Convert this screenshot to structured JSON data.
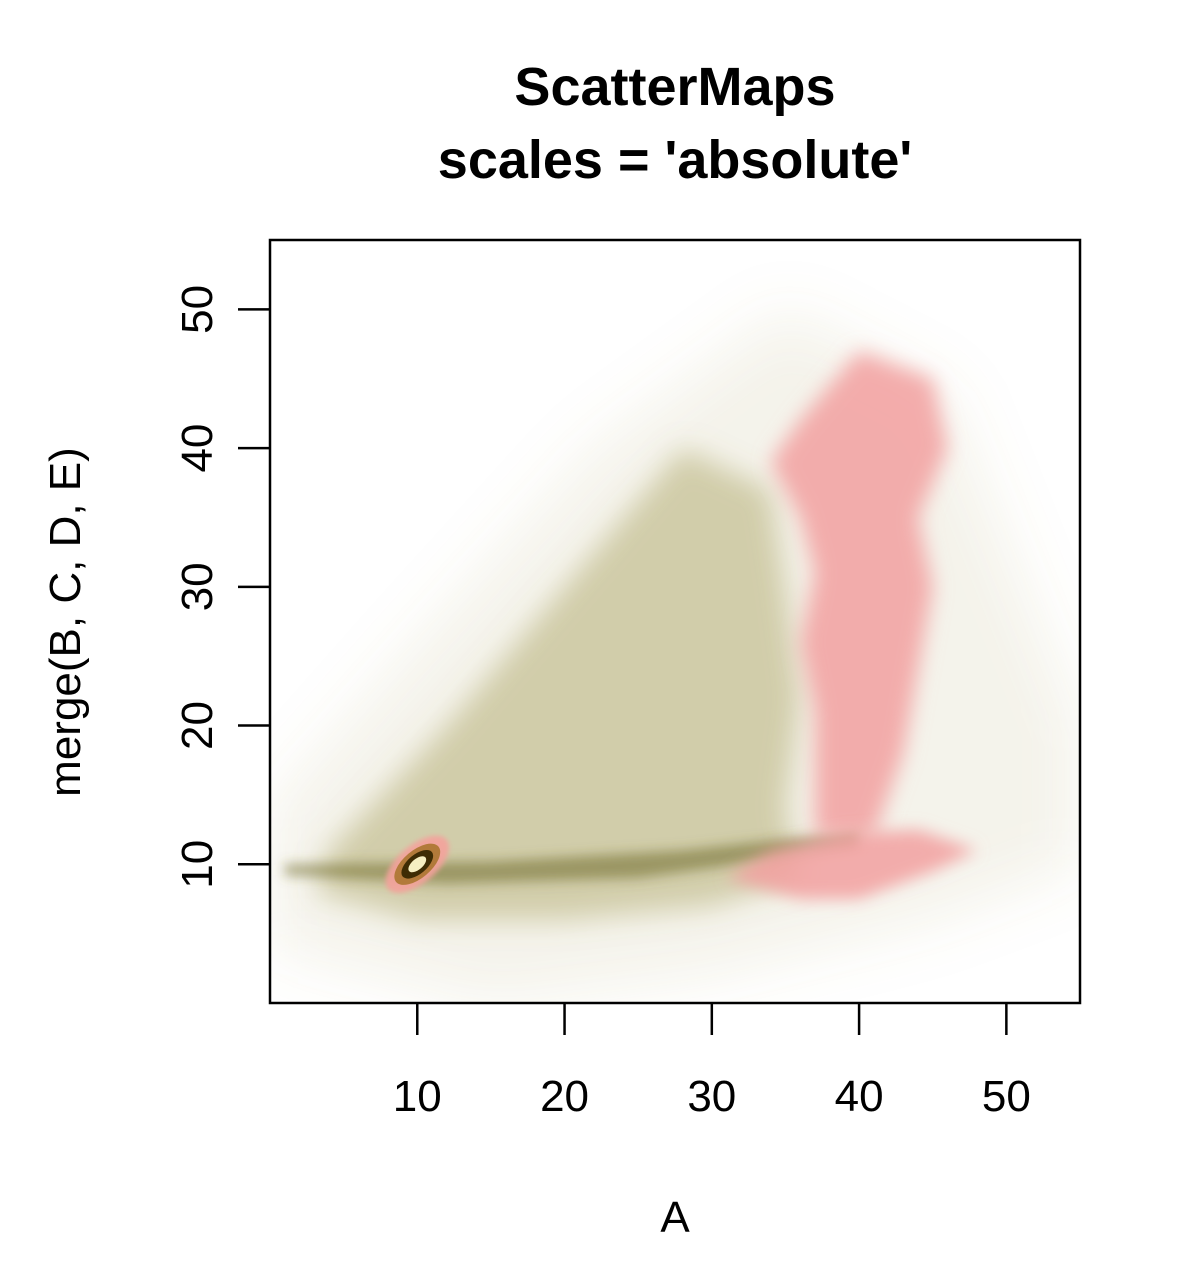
{
  "chart_data": {
    "type": "heatmap",
    "title": "ScatterMaps",
    "subtitle": "scales = 'absolute'",
    "xlabel": "A",
    "ylabel": "merge(B, C, D, E)",
    "xlim": [
      0,
      55
    ],
    "ylim": [
      0,
      55
    ],
    "xticks": [
      10,
      20,
      30,
      40,
      50
    ],
    "yticks": [
      10,
      20,
      30,
      40,
      50
    ],
    "grid": false,
    "colors": {
      "olive": "#a79f5c",
      "olive_dark": "#6e6a2c",
      "pink": "#f2a0a0",
      "core_dark": "#3e2c04"
    },
    "density_regions": [
      {
        "name": "olive-fan",
        "color": "olive",
        "polygon": [
          [
            3,
            8
          ],
          [
            10,
            6
          ],
          [
            20,
            6
          ],
          [
            30,
            7
          ],
          [
            36,
            9
          ],
          [
            35,
            14
          ],
          [
            36,
            22
          ],
          [
            35,
            30
          ],
          [
            34,
            37
          ],
          [
            28,
            40
          ],
          [
            20,
            30
          ],
          [
            12,
            20
          ],
          [
            4,
            11
          ]
        ],
        "opacity": 0.45,
        "blur": 14
      },
      {
        "name": "olive-haze",
        "color": "olive",
        "polygon": [
          [
            0,
            4
          ],
          [
            15,
            0
          ],
          [
            30,
            2
          ],
          [
            45,
            6
          ],
          [
            55,
            10
          ],
          [
            55,
            20
          ],
          [
            46,
            44
          ],
          [
            35,
            50
          ],
          [
            22,
            40
          ],
          [
            10,
            26
          ],
          [
            0,
            14
          ]
        ],
        "opacity": 0.12,
        "blur": 30
      },
      {
        "name": "olive-band",
        "color": "olive_dark",
        "polygon": [
          [
            1,
            9.2
          ],
          [
            12,
            8.6
          ],
          [
            25,
            9.0
          ],
          [
            40,
            11.2
          ],
          [
            40,
            12.4
          ],
          [
            28,
            11.0
          ],
          [
            15,
            10.2
          ],
          [
            1,
            10.0
          ]
        ],
        "opacity": 0.55,
        "blur": 6
      },
      {
        "name": "pink-column",
        "color": "pink",
        "polygon": [
          [
            34,
            39
          ],
          [
            36,
            42
          ],
          [
            40,
            47
          ],
          [
            45,
            45
          ],
          [
            46,
            40
          ],
          [
            44,
            35
          ],
          [
            45,
            30
          ],
          [
            44,
            24
          ],
          [
            43,
            18
          ],
          [
            41,
            12
          ],
          [
            37,
            12
          ],
          [
            37,
            17
          ],
          [
            37,
            21
          ],
          [
            36,
            26
          ],
          [
            37,
            31
          ],
          [
            36,
            35
          ]
        ],
        "opacity": 0.85,
        "blur": 10
      },
      {
        "name": "pink-foot",
        "color": "pink",
        "polygon": [
          [
            31,
            9
          ],
          [
            36,
            7.5
          ],
          [
            40,
            7.5
          ],
          [
            45,
            9.5
          ],
          [
            48,
            11
          ],
          [
            44,
            12.5
          ],
          [
            39,
            12.2
          ],
          [
            34,
            11
          ]
        ],
        "opacity": 0.85,
        "blur": 8
      }
    ],
    "hotspot": {
      "name": "dense-core",
      "center": [
        10,
        10
      ],
      "rx": 2.6,
      "ry": 1.3,
      "angle": -40,
      "rings": [
        {
          "scale": 1.0,
          "color": "#f4a29b",
          "opacity": 0.9
        },
        {
          "scale": 0.72,
          "color": "#b27a3a",
          "opacity": 1.0
        },
        {
          "scale": 0.5,
          "color": "#3e2c04",
          "opacity": 1.0
        },
        {
          "scale": 0.28,
          "color": "#f6efc2",
          "opacity": 1.0
        }
      ]
    }
  }
}
